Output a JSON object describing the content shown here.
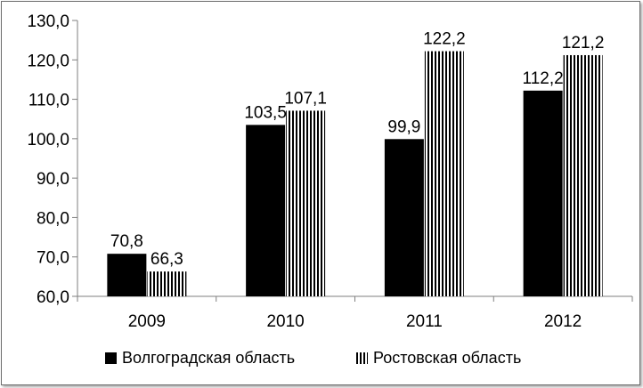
{
  "chart_data": {
    "type": "bar",
    "categories": [
      "2009",
      "2010",
      "2011",
      "2012"
    ],
    "series": [
      {
        "name": "Волгоградская область",
        "values": [
          70.8,
          103.5,
          99.9,
          112.2
        ],
        "labels": [
          "70,8",
          "103,5",
          "99,9",
          "112,2"
        ],
        "color": "#000000",
        "pattern": "solid"
      },
      {
        "name": "Ростовская область",
        "values": [
          66.3,
          107.1,
          122.2,
          121.2
        ],
        "labels": [
          "66,3",
          "107,1",
          "122,2",
          "121,2"
        ],
        "color": "#000000",
        "pattern": "vertical-stripes"
      }
    ],
    "yticks": [
      60,
      70,
      80,
      90,
      100,
      110,
      120,
      130
    ],
    "ytick_labels": [
      "60,0",
      "70,0",
      "80,0",
      "90,0",
      "100,0",
      "110,0",
      "120,0",
      "130,0"
    ],
    "ylim": [
      60,
      130
    ],
    "title": "",
    "xlabel": "",
    "ylabel": "",
    "grid": false,
    "legend_position": "bottom"
  }
}
